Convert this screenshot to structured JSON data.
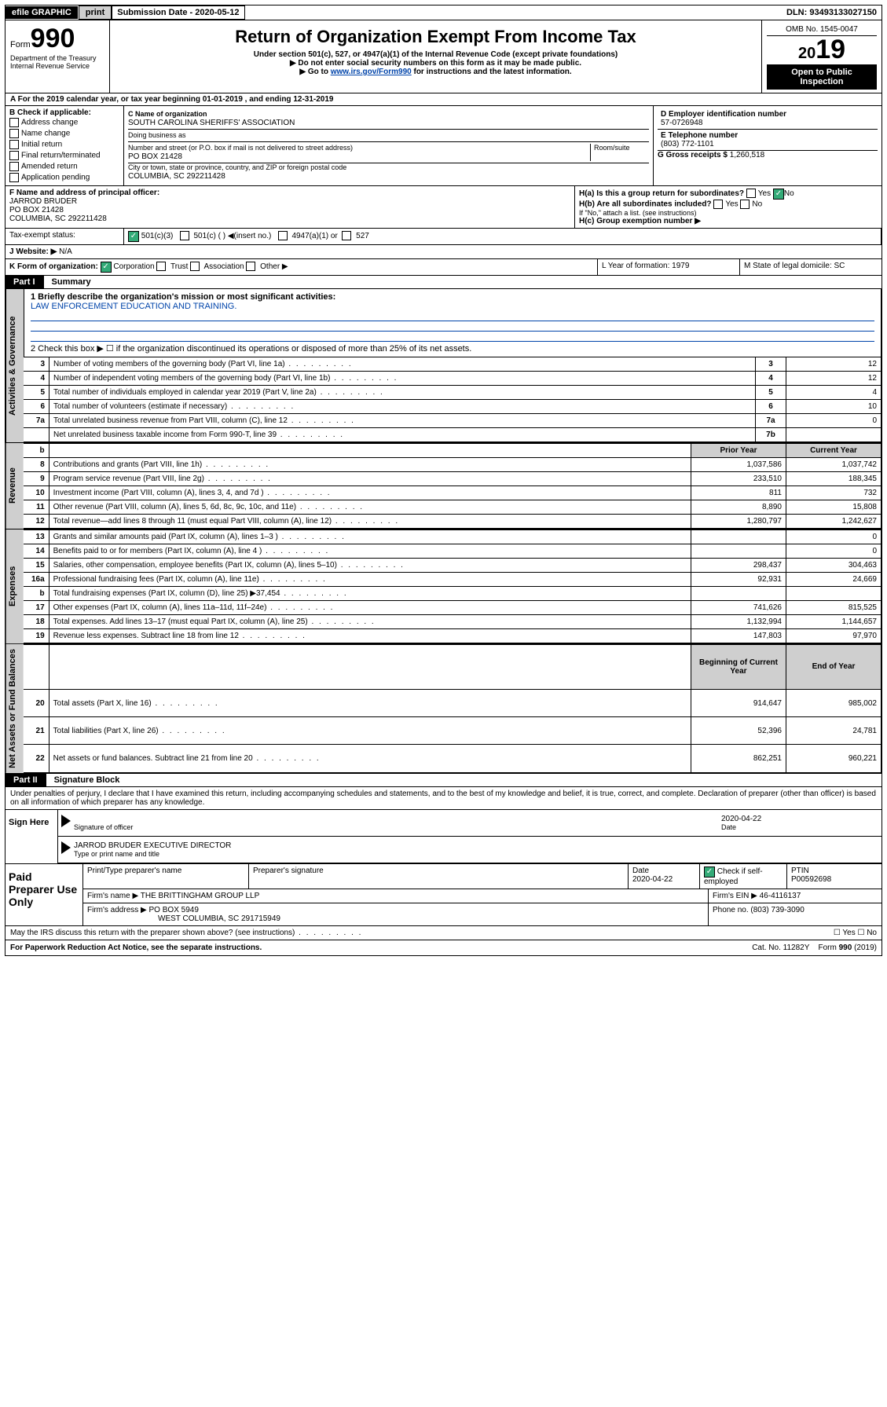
{
  "topbar": {
    "efile": "efile GRAPHIC",
    "print": "print",
    "sub_label": "Submission Date - 2020-05-12",
    "dln": "DLN: 93493133027150"
  },
  "header": {
    "form": "Form",
    "form_no": "990",
    "dept1": "Department of the Treasury",
    "dept2": "Internal Revenue Service",
    "title": "Return of Organization Exempt From Income Tax",
    "sub1": "Under section 501(c), 527, or 4947(a)(1) of the Internal Revenue Code (except private foundations)",
    "sub2": "▶ Do not enter social security numbers on this form as it may be made public.",
    "sub3_pre": "▶ Go to ",
    "sub3_link": "www.irs.gov/Form990",
    "sub3_post": " for instructions and the latest information.",
    "omb": "OMB No. 1545-0047",
    "year_prefix": "20",
    "year_suffix": "19",
    "open": "Open to Public Inspection"
  },
  "period": "A   For the 2019 calendar year, or tax year beginning 01-01-2019     , and ending 12-31-2019",
  "blockB": {
    "title": "B Check if applicable:",
    "items": [
      "Address change",
      "Name change",
      "Initial return",
      "Final return/terminated",
      "Amended return",
      "Application pending"
    ]
  },
  "blockC": {
    "name_lbl": "C Name of organization",
    "name": "SOUTH CAROLINA SHERIFFS' ASSOCIATION",
    "dba_lbl": "Doing business as",
    "street_lbl": "Number and street (or P.O. box if mail is not delivered to street address)",
    "room_lbl": "Room/suite",
    "street": "PO BOX 21428",
    "city_lbl": "City or town, state or province, country, and ZIP or foreign postal code",
    "city": "COLUMBIA, SC  292211428"
  },
  "blockD": {
    "lbl": "D Employer identification number",
    "val": "57-0726948"
  },
  "blockE": {
    "lbl": "E Telephone number",
    "val": "(803) 772-1101"
  },
  "blockG": {
    "lbl": "G Gross receipts $",
    "val": "1,260,518"
  },
  "blockF": {
    "lbl": "F Name and address of principal officer:",
    "name": "JARROD BRUDER",
    "l1": "PO BOX 21428",
    "l2": "COLUMBIA, SC  292211428"
  },
  "blockH": {
    "ha": "H(a)  Is this a group return for subordinates?",
    "ha_ans": "No",
    "hb": "H(b)  Are all subordinates included?",
    "hb_note": "If \"No,\" attach a list. (see instructions)",
    "hc": "H(c)  Group exemption number ▶"
  },
  "tax_status": {
    "lbl": "Tax-exempt status:",
    "c3": "501(c)(3)",
    "cother": "501(c) (  ) ◀(insert no.)",
    "c4947": "4947(a)(1) or",
    "c527": "527"
  },
  "website": {
    "lbl": "J   Website: ▶",
    "val": "N/A"
  },
  "formK": {
    "lbl": "K Form of organization:",
    "opts": [
      "Corporation",
      "Trust",
      "Association",
      "Other ▶"
    ],
    "L": "L Year of formation: 1979",
    "M": "M State of legal domicile: SC"
  },
  "part1": {
    "num": "Part I",
    "title": "Summary"
  },
  "summary": {
    "q1": "1   Briefly describe the organization's mission or most significant activities:",
    "mission": "LAW ENFORCEMENT EDUCATION AND TRAINING.",
    "q2": "2   Check this box ▶ ☐  if the organization discontinued its operations or disposed of more than 25% of its net assets."
  },
  "gov_rows": [
    {
      "n": "3",
      "d": "Number of voting members of the governing body (Part VI, line 1a)",
      "l": "3",
      "v": "12"
    },
    {
      "n": "4",
      "d": "Number of independent voting members of the governing body (Part VI, line 1b)",
      "l": "4",
      "v": "12"
    },
    {
      "n": "5",
      "d": "Total number of individuals employed in calendar year 2019 (Part V, line 2a)",
      "l": "5",
      "v": "4"
    },
    {
      "n": "6",
      "d": "Total number of volunteers (estimate if necessary)",
      "l": "6",
      "v": "10"
    },
    {
      "n": "7a",
      "d": "Total unrelated business revenue from Part VIII, column (C), line 12",
      "l": "7a",
      "v": "0"
    },
    {
      "n": "",
      "d": "Net unrelated business taxable income from Form 990-T, line 39",
      "l": "7b",
      "v": ""
    }
  ],
  "rev_hdr": {
    "b": "b",
    "py": "Prior Year",
    "cy": "Current Year"
  },
  "rev_rows": [
    {
      "n": "8",
      "d": "Contributions and grants (Part VIII, line 1h)",
      "py": "1,037,586",
      "cy": "1,037,742"
    },
    {
      "n": "9",
      "d": "Program service revenue (Part VIII, line 2g)",
      "py": "233,510",
      "cy": "188,345"
    },
    {
      "n": "10",
      "d": "Investment income (Part VIII, column (A), lines 3, 4, and 7d )",
      "py": "811",
      "cy": "732"
    },
    {
      "n": "11",
      "d": "Other revenue (Part VIII, column (A), lines 5, 6d, 8c, 9c, 10c, and 11e)",
      "py": "8,890",
      "cy": "15,808"
    },
    {
      "n": "12",
      "d": "Total revenue—add lines 8 through 11 (must equal Part VIII, column (A), line 12)",
      "py": "1,280,797",
      "cy": "1,242,627"
    }
  ],
  "exp_rows": [
    {
      "n": "13",
      "d": "Grants and similar amounts paid (Part IX, column (A), lines 1–3 )",
      "py": "",
      "cy": "0"
    },
    {
      "n": "14",
      "d": "Benefits paid to or for members (Part IX, column (A), line 4 )",
      "py": "",
      "cy": "0"
    },
    {
      "n": "15",
      "d": "Salaries, other compensation, employee benefits (Part IX, column (A), lines 5–10)",
      "py": "298,437",
      "cy": "304,463"
    },
    {
      "n": "16a",
      "d": "Professional fundraising fees (Part IX, column (A), line 11e)",
      "py": "92,931",
      "cy": "24,669"
    },
    {
      "n": "b",
      "d": "Total fundraising expenses (Part IX, column (D), line 25) ▶37,454",
      "py": "",
      "cy": ""
    },
    {
      "n": "17",
      "d": "Other expenses (Part IX, column (A), lines 11a–11d, 11f–24e)",
      "py": "741,626",
      "cy": "815,525"
    },
    {
      "n": "18",
      "d": "Total expenses. Add lines 13–17 (must equal Part IX, column (A), line 25)",
      "py": "1,132,994",
      "cy": "1,144,657"
    },
    {
      "n": "19",
      "d": "Revenue less expenses. Subtract line 18 from line 12",
      "py": "147,803",
      "cy": "97,970"
    }
  ],
  "net_hdr": {
    "py": "Beginning of Current Year",
    "cy": "End of Year"
  },
  "net_rows": [
    {
      "n": "20",
      "d": "Total assets (Part X, line 16)",
      "py": "914,647",
      "cy": "985,002"
    },
    {
      "n": "21",
      "d": "Total liabilities (Part X, line 26)",
      "py": "52,396",
      "cy": "24,781"
    },
    {
      "n": "22",
      "d": "Net assets or fund balances. Subtract line 21 from line 20",
      "py": "862,251",
      "cy": "960,221"
    }
  ],
  "labels": {
    "gov": "Activities & Governance",
    "rev": "Revenue",
    "exp": "Expenses",
    "net": "Net Assets or Fund Balances"
  },
  "part2": {
    "num": "Part II",
    "title": "Signature Block"
  },
  "perjury": "Under penalties of perjury, I declare that I have examined this return, including accompanying schedules and statements, and to the best of my knowledge and belief, it is true, correct, and complete. Declaration of preparer (other than officer) is based on all information of which preparer has any knowledge.",
  "sign": {
    "here": "Sign Here",
    "sig_lbl": "Signature of officer",
    "date": "2020-04-22",
    "date_lbl": "Date",
    "name": "JARROD BRUDER  EXECUTIVE DIRECTOR",
    "name_lbl": "Type or print name and title"
  },
  "paid": {
    "title": "Paid Preparer Use Only",
    "h1": "Print/Type preparer's name",
    "h2": "Preparer's signature",
    "h3": "Date",
    "h3v": "2020-04-22",
    "h4": "Check ☑ if self-employed",
    "h5": "PTIN",
    "h5v": "P00592698",
    "firm_lbl": "Firm's name    ▶",
    "firm": "THE BRITTINGHAM GROUP LLP",
    "ein_lbl": "Firm's EIN ▶",
    "ein": "46-4116137",
    "addr_lbl": "Firm's address ▶",
    "addr1": "PO BOX 5949",
    "addr2": "WEST COLUMBIA, SC  291715949",
    "phone_lbl": "Phone no.",
    "phone": "(803) 739-3090"
  },
  "discuss": "May the IRS discuss this return with the preparer shown above? (see instructions)",
  "discuss_opts": "☐ Yes  ☐ No",
  "footer": {
    "pra": "For Paperwork Reduction Act Notice, see the separate instructions.",
    "cat": "Cat. No. 11282Y",
    "form": "Form 990 (2019)"
  }
}
